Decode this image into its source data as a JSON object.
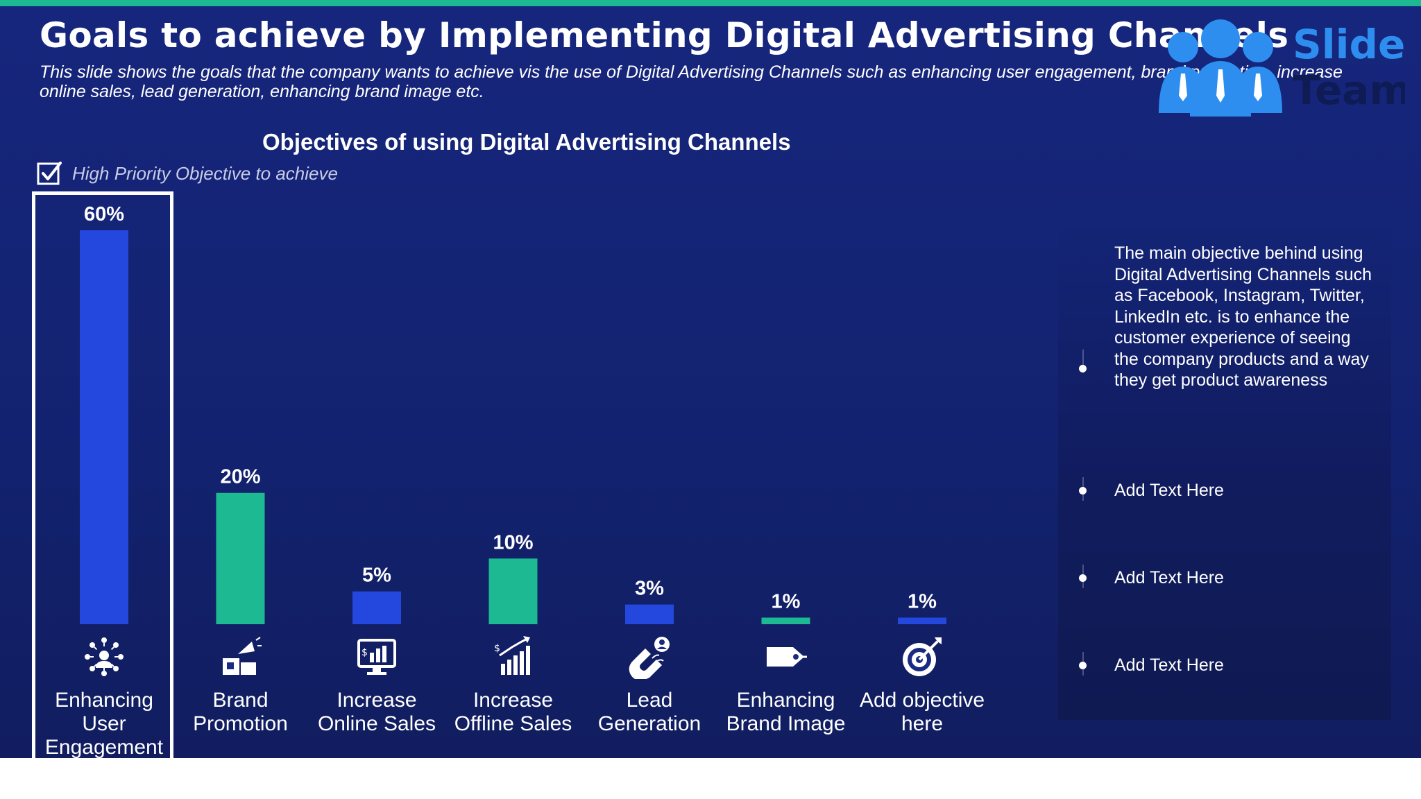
{
  "slide": {
    "title": "Goals to achieve by Implementing Digital Advertising Channels",
    "subtitle": "This slide shows the goals that the company wants to achieve vis the use of Digital Advertising Channels such as enhancing user engagement, brand promotion, increase online sales, lead generation, enhancing brand image etc."
  },
  "logo": {
    "word1": "Slide",
    "word2": "Team",
    "icon": "team-people-icon"
  },
  "legend": {
    "text": "High Priority Objective to achieve",
    "icon": "checkbox-checked-icon"
  },
  "colors": {
    "accent_blue": "#2448dd",
    "accent_green": "#1db992",
    "background": "#14246f",
    "top_bar": "#1db992"
  },
  "chart_data": {
    "type": "bar",
    "title": "Objectives of using Digital Advertising Channels",
    "categories": [
      "Enhancing User Engagement",
      "Brand Promotion",
      "Increase Online Sales",
      "Increase Offline Sales",
      "Lead Generation",
      "Enhancing Brand Image",
      "Add objective here"
    ],
    "values": [
      60,
      20,
      5,
      10,
      3,
      1,
      1
    ],
    "value_labels": [
      "60%",
      "20%",
      "5%",
      "10%",
      "3%",
      "1%",
      "1%"
    ],
    "bar_colors": [
      "#2448dd",
      "#1db992",
      "#2448dd",
      "#1db992",
      "#2448dd",
      "#1db992",
      "#2448dd"
    ],
    "unit": "%",
    "ylim": [
      0,
      60
    ],
    "grid": false,
    "highlighted_category": "Enhancing User Engagement",
    "icons": [
      "network-people-icon",
      "megaphone-box-icon",
      "monitor-chart-icon",
      "growth-chart-icon",
      "magnet-person-icon",
      "tag-icon",
      "target-arrow-icon"
    ]
  },
  "panel": {
    "items": [
      {
        "text": "The main objective behind using Digital Advertising Channels such as Facebook, Instagram, Twitter, LinkedIn etc. is to enhance the customer experience of seeing the company products and a way they get product awareness"
      },
      {
        "text": "Add Text Here"
      },
      {
        "text": "Add Text Here"
      },
      {
        "text": "Add Text Here"
      }
    ]
  }
}
